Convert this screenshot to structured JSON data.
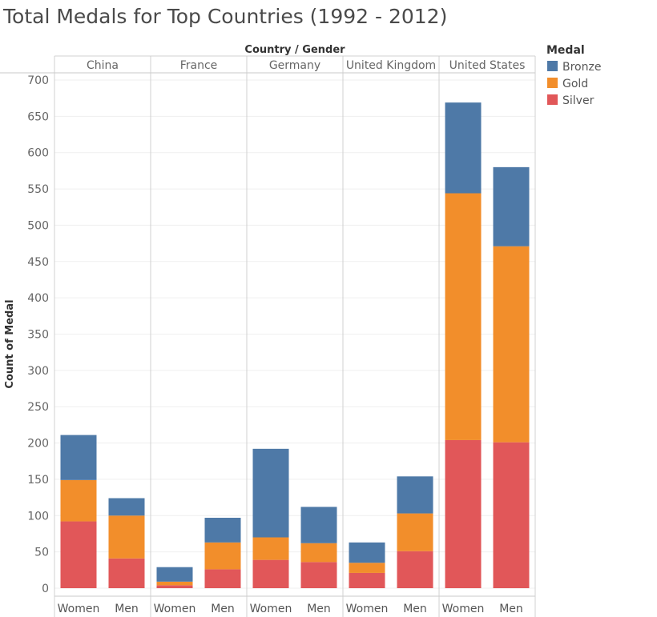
{
  "chart_data": {
    "type": "bar",
    "stacked": true,
    "title": "Total Medals for Top Countries (1992 - 2012)",
    "column_header": "Country / Gender",
    "ylabel": "Count of Medal",
    "ylim": [
      0,
      700
    ],
    "yticks": [
      0,
      50,
      100,
      150,
      200,
      250,
      300,
      350,
      400,
      450,
      500,
      550,
      600,
      650,
      700
    ],
    "grid": true,
    "legend": {
      "title": "Medal",
      "position": "top-right"
    },
    "stack_order": [
      "Silver",
      "Gold",
      "Bronze"
    ],
    "series": [
      {
        "name": "Bronze",
        "color": "#4e79a7"
      },
      {
        "name": "Gold",
        "color": "#f28e2b"
      },
      {
        "name": "Silver",
        "color": "#e15759"
      }
    ],
    "countries": [
      {
        "name": "China",
        "bars": [
          {
            "gender": "Women",
            "Silver": 92,
            "Gold": 57,
            "Bronze": 62
          },
          {
            "gender": "Men",
            "Silver": 41,
            "Gold": 59,
            "Bronze": 24
          }
        ]
      },
      {
        "name": "France",
        "bars": [
          {
            "gender": "Women",
            "Silver": 4,
            "Gold": 5,
            "Bronze": 20
          },
          {
            "gender": "Men",
            "Silver": 26,
            "Gold": 37,
            "Bronze": 34
          }
        ]
      },
      {
        "name": "Germany",
        "bars": [
          {
            "gender": "Women",
            "Silver": 39,
            "Gold": 31,
            "Bronze": 122
          },
          {
            "gender": "Men",
            "Silver": 36,
            "Gold": 26,
            "Bronze": 50
          }
        ]
      },
      {
        "name": "United Kingdom",
        "bars": [
          {
            "gender": "Women",
            "Silver": 21,
            "Gold": 14,
            "Bronze": 28
          },
          {
            "gender": "Men",
            "Silver": 51,
            "Gold": 52,
            "Bronze": 51
          }
        ]
      },
      {
        "name": "United States",
        "bars": [
          {
            "gender": "Women",
            "Silver": 204,
            "Gold": 340,
            "Bronze": 125
          },
          {
            "gender": "Men",
            "Silver": 201,
            "Gold": 270,
            "Bronze": 109
          }
        ]
      }
    ]
  }
}
